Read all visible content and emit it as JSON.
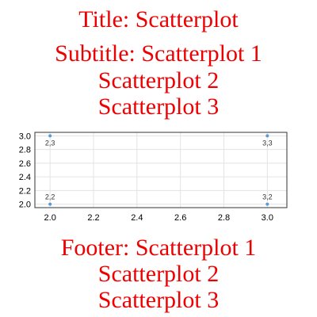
{
  "header": {
    "title": "Title: Scatterplot",
    "subtitle_lines": [
      "Subtitle: Scatterplot 1",
      "Scatterplot 2",
      "Scatterplot 3"
    ]
  },
  "footer": {
    "lines": [
      "Footer: Scatterplot 1",
      "Scatterplot 2",
      "Scatterplot 3"
    ]
  },
  "chart_data": {
    "type": "scatter",
    "title": "Title: Scatterplot",
    "subtitle": "Subtitle: Scatterplot 1 Scatterplot 2 Scatterplot 3",
    "footer": "Footer: Scatterplot 1 Scatterplot 2 Scatterplot 3",
    "xlabel": "",
    "ylabel": "",
    "xlim": [
      1.93,
      3.09
    ],
    "ylim": [
      1.95,
      3.05
    ],
    "x_ticks": [
      "2.0",
      "2.2",
      "2.4",
      "2.6",
      "2.8",
      "3.0"
    ],
    "y_ticks": [
      "2.0",
      "2.2",
      "2.4",
      "2.6",
      "2.8",
      "3.0"
    ],
    "grid": true,
    "legend": "none",
    "series": [
      {
        "color": "#5b9bd5",
        "points": [
          {
            "x": 2,
            "y": 3,
            "label": "2,3"
          },
          {
            "x": 3,
            "y": 3,
            "label": "3,3"
          },
          {
            "x": 2,
            "y": 2,
            "label": "2,2"
          },
          {
            "x": 3,
            "y": 2,
            "label": "3,2"
          }
        ]
      }
    ],
    "colors": {
      "text": "#ee0000",
      "grid": "#e3e3e3",
      "frame": "#333333"
    }
  }
}
